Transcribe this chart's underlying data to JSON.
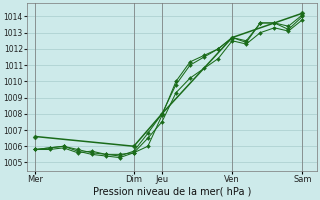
{
  "xlabel": "Pression niveau de la mer( hPa )",
  "ylim": [
    1004.5,
    1014.8
  ],
  "yticks": [
    1005,
    1006,
    1007,
    1008,
    1009,
    1010,
    1011,
    1012,
    1013,
    1014
  ],
  "bg_color": "#cdeaea",
  "grid_color": "#a8cccc",
  "line_color": "#1a6b1a",
  "vline_color": "#777777",
  "day_labels": [
    "Mer",
    "Dim",
    "Jeu",
    "Ven",
    "Sam"
  ],
  "day_positions": [
    0.0,
    0.35,
    0.45,
    0.7,
    0.95
  ],
  "xlim": [
    -0.03,
    1.0
  ],
  "series1_x": [
    0.0,
    0.05,
    0.1,
    0.15,
    0.2,
    0.25,
    0.3,
    0.35,
    0.4,
    0.45,
    0.5,
    0.55,
    0.6,
    0.65,
    0.7,
    0.75,
    0.8,
    0.85,
    0.9,
    0.95
  ],
  "series1_y": [
    1005.8,
    1005.8,
    1005.9,
    1005.6,
    1005.7,
    1005.5,
    1005.5,
    1005.6,
    1006.0,
    1007.9,
    1010.0,
    1011.2,
    1011.6,
    1012.0,
    1012.7,
    1012.5,
    1013.6,
    1013.6,
    1013.2,
    1014.0
  ],
  "series2_x": [
    0.0,
    0.05,
    0.1,
    0.15,
    0.2,
    0.25,
    0.3,
    0.35,
    0.4,
    0.45,
    0.5,
    0.55,
    0.6,
    0.65,
    0.7,
    0.75,
    0.8,
    0.85,
    0.9,
    0.95
  ],
  "series2_y": [
    1005.8,
    1005.9,
    1006.0,
    1005.7,
    1005.5,
    1005.4,
    1005.3,
    1005.6,
    1006.5,
    1007.5,
    1009.3,
    1010.2,
    1010.8,
    1011.4,
    1012.5,
    1012.3,
    1013.0,
    1013.3,
    1013.1,
    1013.8
  ],
  "series3_x": [
    0.0,
    0.35,
    0.45,
    0.7,
    0.95
  ],
  "series3_y": [
    1006.6,
    1006.0,
    1008.0,
    1012.7,
    1014.2
  ],
  "series4_x": [
    0.0,
    0.05,
    0.1,
    0.15,
    0.2,
    0.25,
    0.3,
    0.35,
    0.4,
    0.45,
    0.5,
    0.55,
    0.6,
    0.65,
    0.7,
    0.75,
    0.8,
    0.85,
    0.9,
    0.95
  ],
  "series4_y": [
    1005.8,
    1005.9,
    1006.0,
    1005.8,
    1005.6,
    1005.5,
    1005.4,
    1005.7,
    1006.8,
    1008.0,
    1009.8,
    1011.0,
    1011.5,
    1012.0,
    1012.7,
    1012.4,
    1013.6,
    1013.6,
    1013.4,
    1014.1
  ]
}
